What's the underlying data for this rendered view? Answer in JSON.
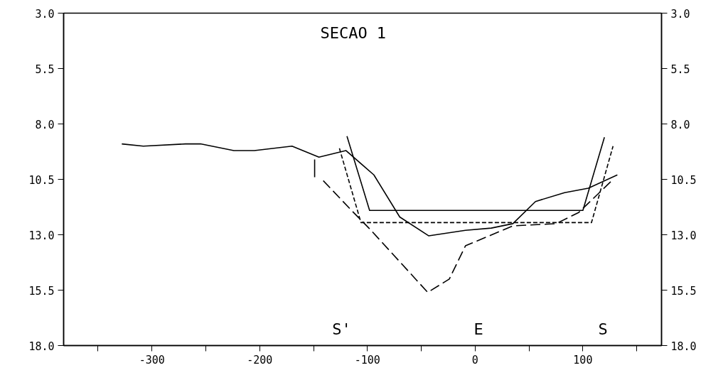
{
  "chart_data": {
    "type": "line",
    "title": "SECAO   1",
    "xlim": [
      -382,
      173
    ],
    "ylim": [
      18,
      3
    ],
    "y2lim": [
      18,
      3
    ],
    "xticks": [
      {
        "value": -350,
        "label": null
      },
      -300,
      {
        "value": -250,
        "label": null
      },
      -200,
      {
        "value": -150,
        "label": null
      },
      -100,
      {
        "value": -50,
        "label": null
      },
      0,
      {
        "value": 50,
        "label": null
      },
      100,
      {
        "value": 150,
        "label": null
      }
    ],
    "yticks": [
      {
        "value": 3,
        "label": "3.0"
      },
      {
        "value": 5.5,
        "label": "5.5"
      },
      {
        "value": 8,
        "label": "8.0"
      },
      {
        "value": 10.5,
        "label": "10.5"
      },
      {
        "value": 13,
        "label": "13.0"
      },
      {
        "value": 15.5,
        "label": "15.5"
      },
      {
        "value": 18,
        "label": "18.0"
      }
    ],
    "y2ticks": [
      {
        "value": 3,
        "label": "3.0"
      },
      {
        "value": 5.5,
        "label": "5.5"
      },
      {
        "value": 8,
        "label": "8.0"
      },
      {
        "value": 10.5,
        "label": "10.5"
      },
      {
        "value": 13,
        "label": "13.0"
      },
      {
        "value": 15.5,
        "label": "15.5"
      },
      {
        "value": 18,
        "label": "18.0"
      }
    ],
    "grid": false,
    "marker": "none",
    "series": [
      {
        "color": "#000000",
        "line_style": "solid",
        "x": [
          -328,
          -308,
          -269,
          -255,
          -224,
          -205,
          -170,
          -145,
          -120,
          -94,
          -70,
          -43,
          -9,
          15,
          35,
          56,
          83,
          105,
          132
        ],
        "values": [
          8.9,
          9.0,
          8.9,
          8.9,
          9.2,
          9.2,
          9.0,
          9.5,
          9.2,
          10.3,
          12.2,
          13.05,
          12.8,
          12.7,
          12.5,
          11.5,
          11.1,
          10.9,
          10.3
        ]
      },
      {
        "color": "#000000",
        "line_style": "solid",
        "x": [
          -149,
          -149
        ],
        "values": [
          9.6,
          10.4
        ]
      },
      {
        "color": "#000000",
        "line_style": "solid",
        "x": [
          -119,
          -98,
          100,
          120
        ],
        "values": [
          8.55,
          11.9,
          11.9,
          8.6
        ]
      },
      {
        "color": "#000000",
        "line_style": "dashed",
        "x": [
          -126,
          -106,
          108,
          128
        ],
        "values": [
          9.1,
          12.45,
          12.45,
          9.0
        ]
      },
      {
        "color": "#000000",
        "line_style": "dashdot",
        "x": [
          -141,
          -116,
          -98,
          -44,
          -24,
          -9,
          35,
          75,
          96,
          126
        ],
        "values": [
          10.56,
          11.84,
          12.73,
          15.6,
          15.0,
          13.5,
          12.6,
          12.5,
          12.0,
          10.6
        ]
      }
    ],
    "annotations": [
      "S'",
      "E",
      "S"
    ]
  }
}
